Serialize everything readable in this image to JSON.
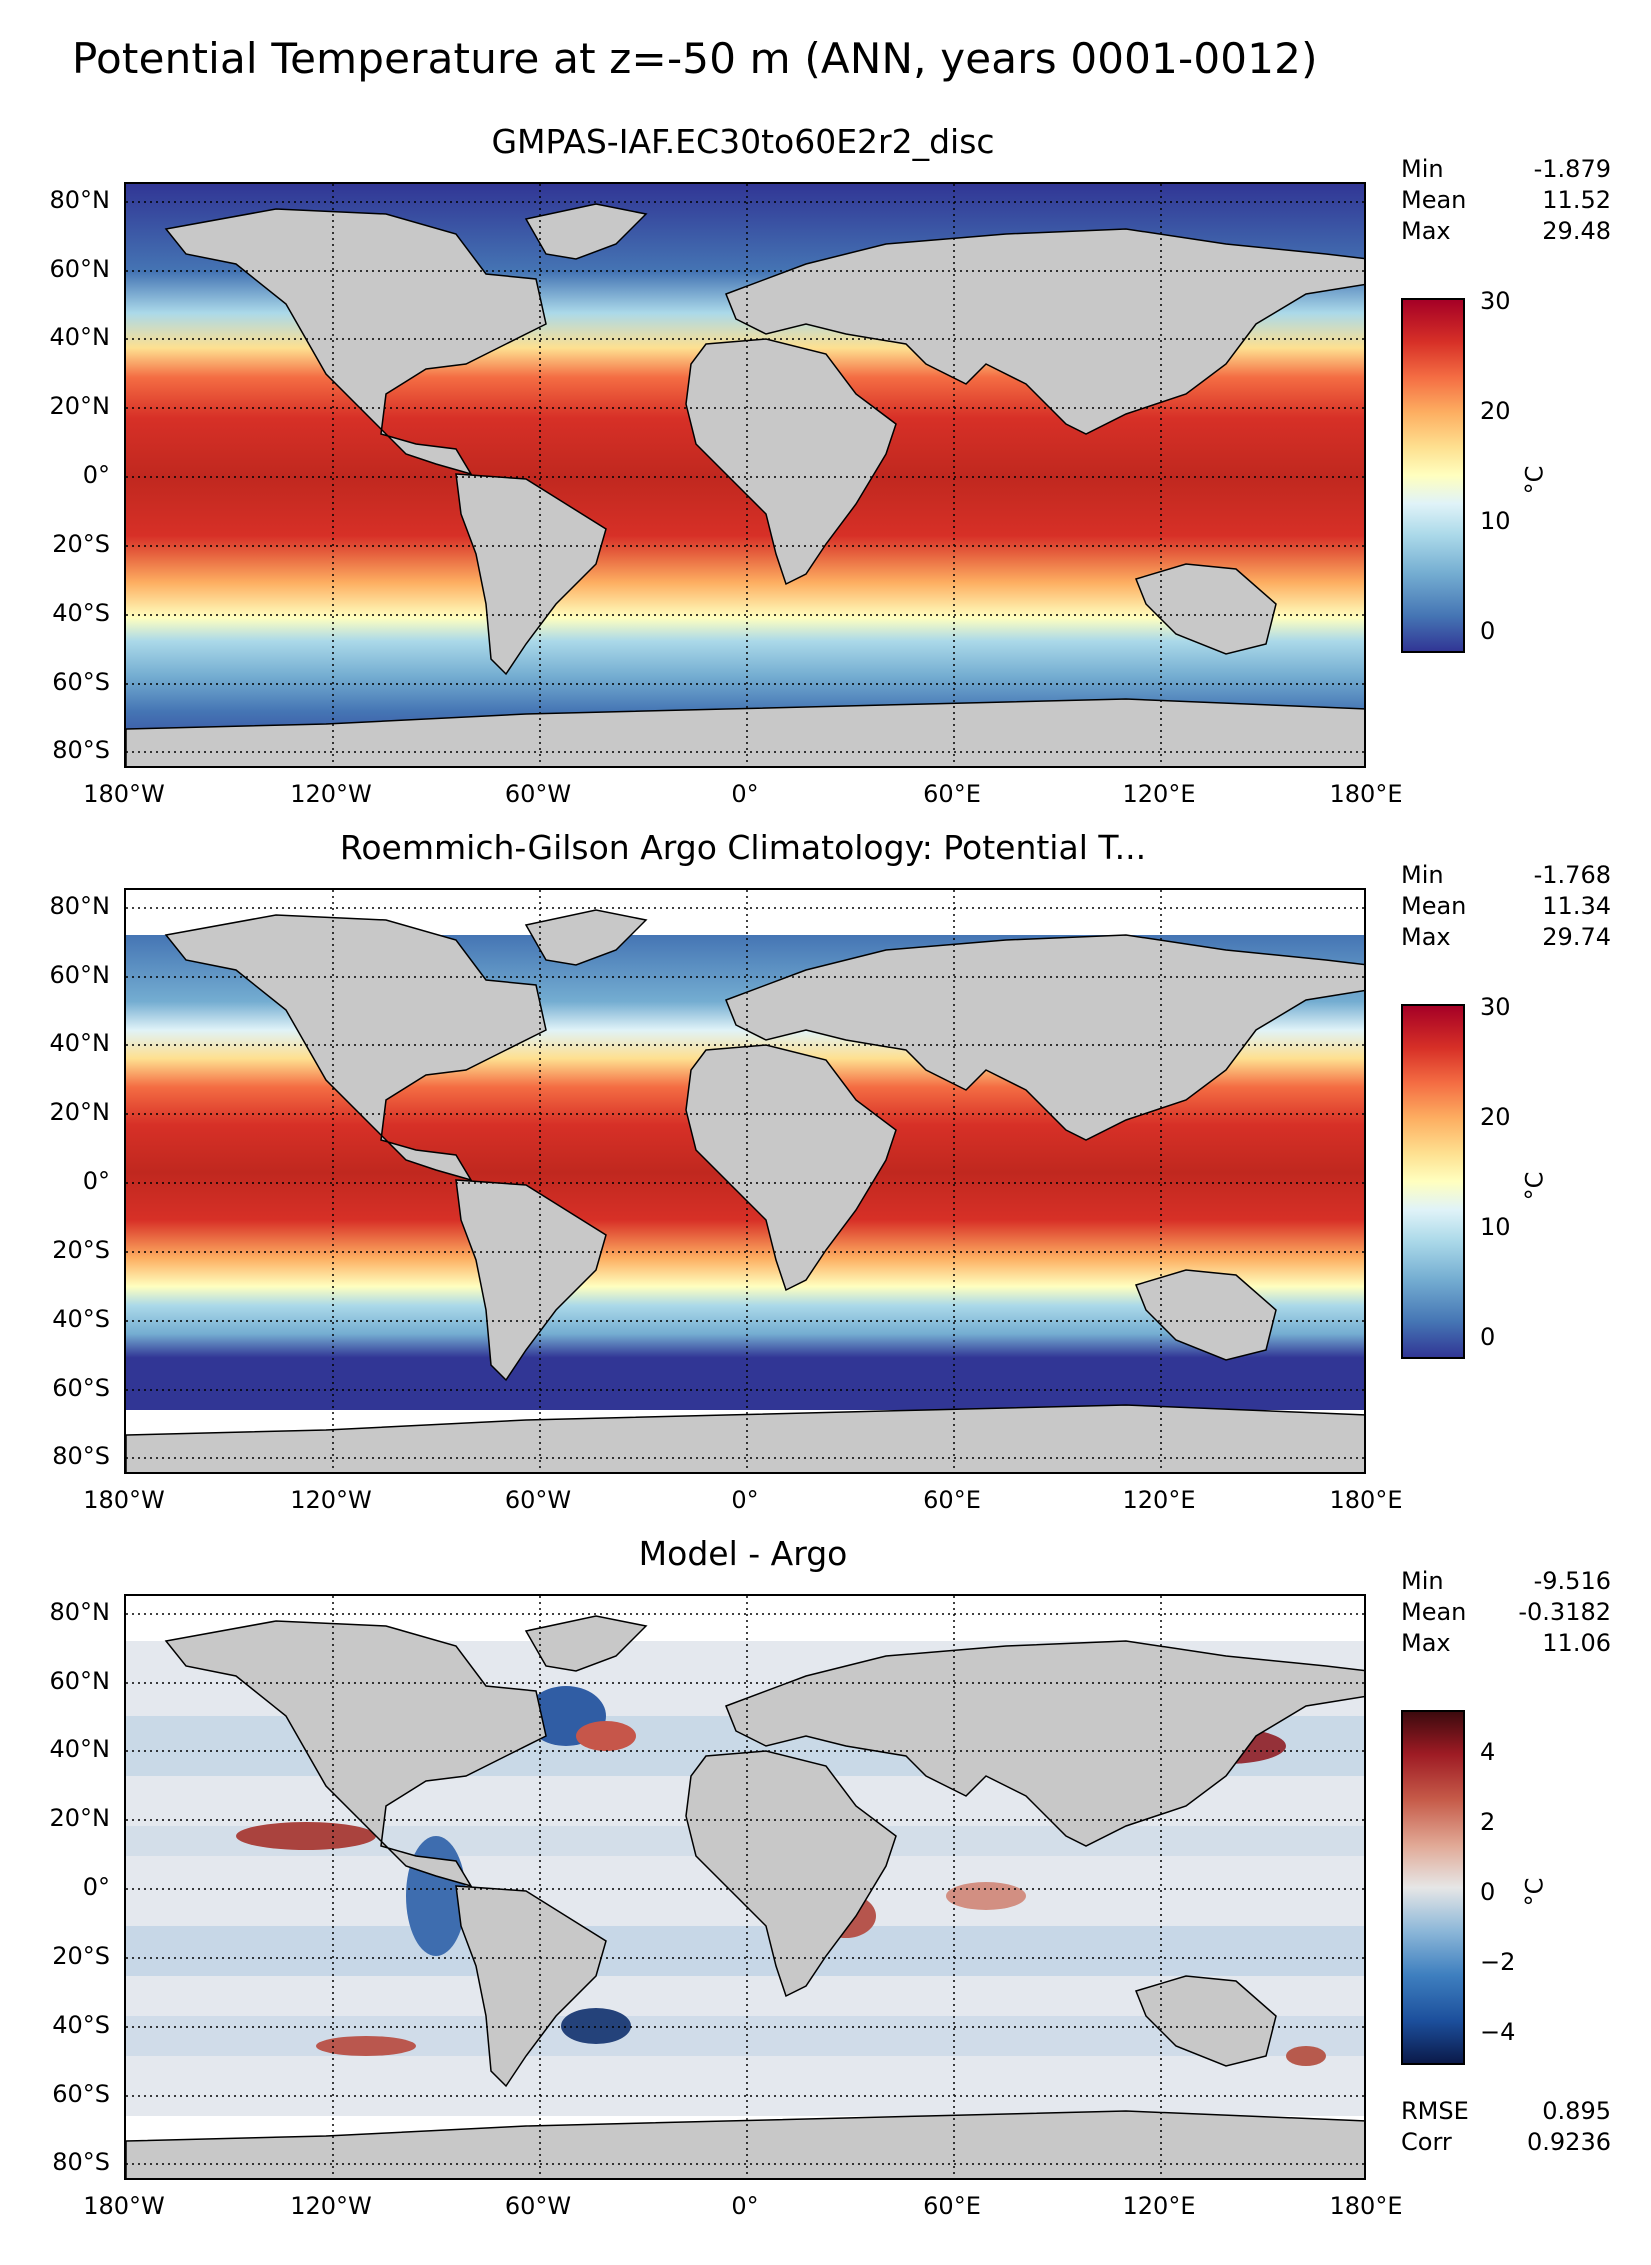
{
  "suptitle": "Potential Temperature at z=-50 m (ANN, years 0001-0012)",
  "x_tick_labels": [
    "180°W",
    "120°W",
    "60°W",
    "0°",
    "60°E",
    "120°E",
    "180°E"
  ],
  "y_tick_labels": [
    "80°N",
    "60°N",
    "40°N",
    "20°N",
    "0°",
    "20°S",
    "40°S",
    "60°S",
    "80°S"
  ],
  "colors": {
    "land": "#c8c8c8",
    "missing": "#ffffff",
    "temp_cmap": [
      "#313695",
      "#4575b4",
      "#74add1",
      "#abd9e9",
      "#e0f3f8",
      "#ffffbf",
      "#fee090",
      "#fdae61",
      "#f46d43",
      "#d73027",
      "#a50026"
    ],
    "diff_cmap": [
      "#0b1a4a",
      "#1c4f9c",
      "#3e7fbf",
      "#8fb9d9",
      "#e6e6e6",
      "#e1a996",
      "#c65b49",
      "#9e1b24",
      "#3d0a0e"
    ]
  },
  "panels": [
    {
      "title": "GMPAS-IAF.EC30to60E2r2_disc",
      "stats": [
        {
          "label": "Min",
          "value": "-1.879"
        },
        {
          "label": "Mean",
          "value": "11.52"
        },
        {
          "label": "Max",
          "value": "29.48"
        }
      ],
      "colorbar": {
        "ticks": [
          "0",
          "10",
          "20",
          "30"
        ],
        "unit": "°C",
        "range": [
          -2,
          30
        ]
      }
    },
    {
      "title": "Roemmich-Gilson Argo Climatology: Potential T...",
      "stats": [
        {
          "label": "Min",
          "value": "-1.768"
        },
        {
          "label": "Mean",
          "value": "11.34"
        },
        {
          "label": "Max",
          "value": "29.74"
        }
      ],
      "colorbar": {
        "ticks": [
          "0",
          "10",
          "20",
          "30"
        ],
        "unit": "°C",
        "range": [
          -2,
          30
        ]
      }
    },
    {
      "title": "Model - Argo",
      "stats": [
        {
          "label": "Min",
          "value": "-9.516"
        },
        {
          "label": "Mean",
          "value": "-0.3182"
        },
        {
          "label": "Max",
          "value": "11.06"
        }
      ],
      "colorbar": {
        "ticks": [
          "−4",
          "−2",
          "0",
          "2",
          "4"
        ],
        "unit": "°C",
        "range": [
          -5,
          5
        ]
      },
      "error_stats": [
        {
          "label": "RMSE",
          "value": "0.895"
        },
        {
          "label": "Corr",
          "value": "0.9236"
        }
      ]
    }
  ]
}
